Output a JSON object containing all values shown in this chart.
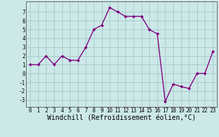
{
  "x": [
    0,
    1,
    2,
    3,
    4,
    5,
    6,
    7,
    8,
    9,
    10,
    11,
    12,
    13,
    14,
    15,
    16,
    17,
    18,
    19,
    20,
    21,
    22,
    23
  ],
  "y": [
    1,
    1,
    2,
    1,
    2,
    1.5,
    1.5,
    3,
    5,
    5.5,
    7.5,
    7,
    6.5,
    6.5,
    6.5,
    5,
    4.5,
    -3.2,
    -1.2,
    -1.5,
    -1.7,
    0,
    0,
    2.5
  ],
  "line_color": "#800080",
  "marker": "D",
  "marker_size": 2,
  "background_color": "#cce8e8",
  "grid_color": "#aacccc",
  "xlabel": "Windchill (Refroidissement éolien,°C)",
  "xlim": [
    -0.5,
    23.5
  ],
  "ylim": [
    -3.8,
    8.2
  ],
  "yticks": [
    -3,
    -2,
    -1,
    0,
    1,
    2,
    3,
    4,
    5,
    6,
    7
  ],
  "xticks": [
    0,
    1,
    2,
    3,
    4,
    5,
    6,
    7,
    8,
    9,
    10,
    11,
    12,
    13,
    14,
    15,
    16,
    17,
    18,
    19,
    20,
    21,
    22,
    23
  ],
  "tick_label_fontsize": 5.5,
  "xlabel_fontsize": 7,
  "line_width": 1.0,
  "spine_color": "#666666"
}
